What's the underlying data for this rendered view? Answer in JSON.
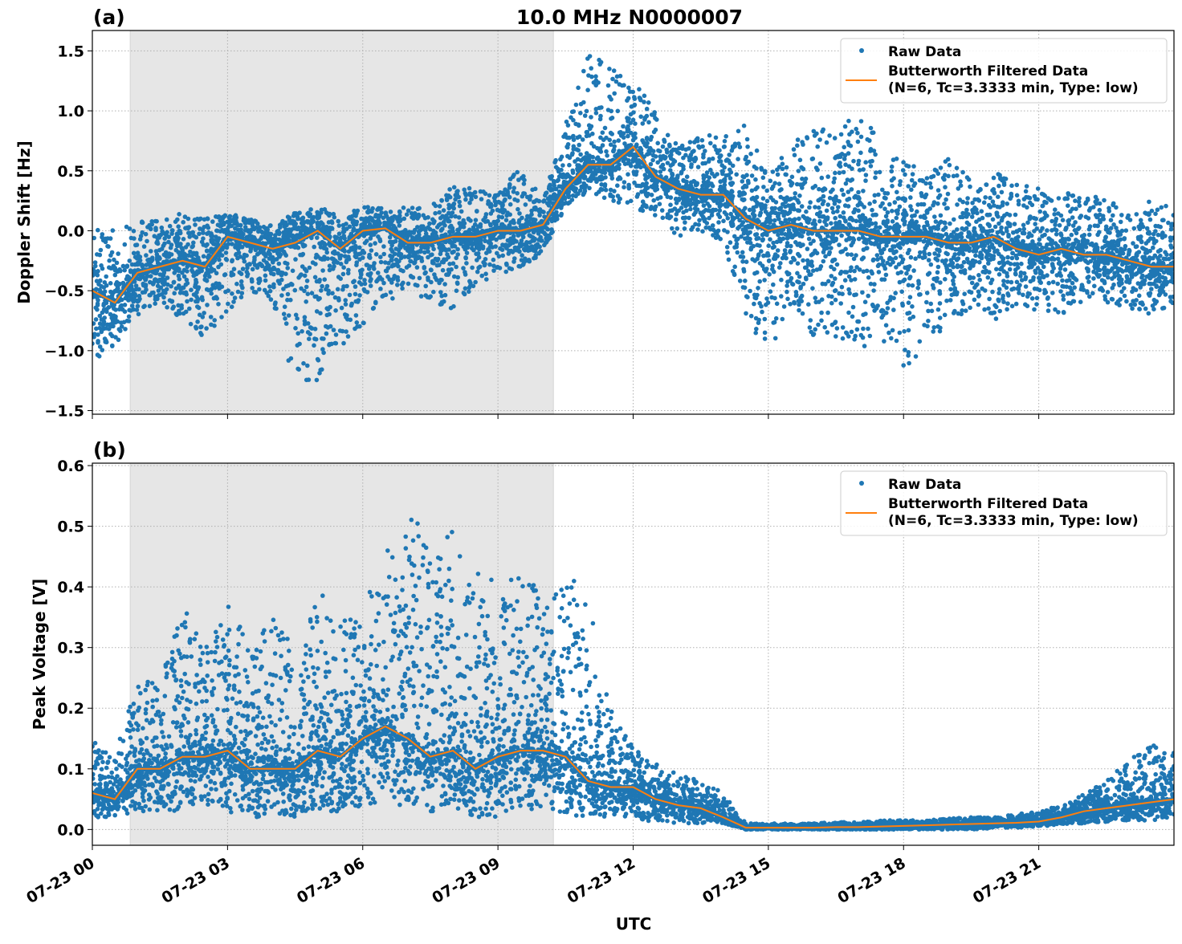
{
  "chart_data": [
    {
      "type": "scatter",
      "panel_label": "(a)",
      "title": "10.0 MHz N0000007",
      "xlabel": "",
      "ylabel": "Doppler Shift [Hz]",
      "xlim_hours": [
        0,
        24
      ],
      "ylim": [
        -1.53,
        1.67
      ],
      "yticks": [
        -1.5,
        -1.0,
        -0.5,
        0.0,
        0.5,
        1.0,
        1.5
      ],
      "ytick_labels": [
        "−1.5",
        "−1.0",
        "−0.5",
        "0.0",
        "0.5",
        "1.0",
        "1.5"
      ],
      "grid": true,
      "legend_placement": "top-right",
      "shaded_interval_hours": [
        0.84,
        10.23
      ],
      "x_hours": [
        0,
        0.5,
        1,
        1.5,
        2,
        2.5,
        3,
        3.5,
        4,
        4.5,
        5,
        5.5,
        6,
        6.5,
        7,
        7.5,
        8,
        8.5,
        9,
        9.5,
        10,
        10.5,
        11,
        11.5,
        12,
        12.5,
        13,
        13.5,
        14,
        14.5,
        15,
        15.5,
        16,
        16.5,
        17,
        17.5,
        18,
        18.5,
        19,
        19.5,
        20,
        20.5,
        21,
        21.5,
        22,
        22.5,
        23,
        23.5,
        24
      ],
      "series": [
        {
          "name": "Raw Data",
          "kind": "scatter",
          "color": "#1f77b4",
          "min": [
            -1.1,
            -0.95,
            -0.7,
            -0.6,
            -0.75,
            -0.9,
            -0.7,
            -0.5,
            -0.6,
            -1.35,
            -1.35,
            -1.05,
            -0.8,
            -0.6,
            -0.5,
            -0.6,
            -0.65,
            -0.5,
            -0.4,
            -0.3,
            -0.2,
            0.2,
            0.3,
            0.25,
            0.2,
            0.1,
            -0.05,
            0.0,
            -0.1,
            -0.7,
            -1.05,
            -0.6,
            -1.05,
            -0.9,
            -1.0,
            -0.9,
            -1.2,
            -0.95,
            -0.8,
            -0.7,
            -0.75,
            -0.65,
            -0.7,
            -0.7,
            -0.6,
            -0.6,
            -0.65,
            -0.7,
            -0.6
          ],
          "max": [
            0.0,
            0.05,
            0.1,
            0.1,
            0.15,
            0.1,
            0.15,
            0.1,
            0.05,
            0.15,
            0.2,
            0.15,
            0.2,
            0.2,
            0.2,
            0.2,
            0.4,
            0.35,
            0.3,
            0.55,
            0.3,
            0.9,
            1.5,
            1.35,
            1.25,
            1.0,
            0.7,
            0.8,
            0.8,
            0.9,
            0.5,
            0.75,
            0.9,
            0.8,
            1.05,
            0.7,
            0.6,
            0.5,
            0.6,
            0.45,
            0.5,
            0.4,
            0.35,
            0.3,
            0.35,
            0.25,
            0.2,
            0.25,
            0.2
          ]
        },
        {
          "name": "Butterworth Filtered Data\n(N=6, Tc=3.3333 min, Type: low)",
          "kind": "line",
          "color": "#ff7f0e",
          "values": [
            -0.5,
            -0.6,
            -0.35,
            -0.3,
            -0.25,
            -0.3,
            -0.05,
            -0.1,
            -0.15,
            -0.1,
            0.0,
            -0.15,
            0.0,
            0.02,
            -0.1,
            -0.1,
            -0.05,
            -0.05,
            0.0,
            0.0,
            0.05,
            0.35,
            0.55,
            0.55,
            0.7,
            0.45,
            0.35,
            0.3,
            0.3,
            0.1,
            0.0,
            0.05,
            0.0,
            0.0,
            0.0,
            -0.05,
            -0.05,
            -0.05,
            -0.1,
            -0.1,
            -0.05,
            -0.15,
            -0.2,
            -0.15,
            -0.2,
            -0.2,
            -0.25,
            -0.3,
            -0.3
          ]
        }
      ]
    },
    {
      "type": "scatter",
      "panel_label": "(b)",
      "xlabel": "UTC",
      "ylabel": "Peak Voltage [V]",
      "xlim_hours": [
        0,
        24
      ],
      "ylim": [
        -0.026,
        0.604
      ],
      "yticks": [
        0.0,
        0.1,
        0.2,
        0.3,
        0.4,
        0.5,
        0.6
      ],
      "ytick_labels": [
        "0.0",
        "0.1",
        "0.2",
        "0.3",
        "0.4",
        "0.5",
        "0.6"
      ],
      "xticks_hours": [
        0,
        3,
        6,
        9,
        12,
        15,
        18,
        21
      ],
      "xtick_labels": [
        "07-23 00",
        "07-23 03",
        "07-23 06",
        "07-23 09",
        "07-23 12",
        "07-23 15",
        "07-23 18",
        "07-23 21"
      ],
      "grid": true,
      "legend_placement": "top-right",
      "shaded_interval_hours": [
        0.84,
        10.23
      ],
      "x_hours": [
        0,
        0.5,
        1,
        1.5,
        2,
        2.5,
        3,
        3.5,
        4,
        4.5,
        5,
        5.5,
        6,
        6.5,
        7,
        7.5,
        8,
        8.5,
        9,
        9.5,
        10,
        10.5,
        11,
        11.5,
        12,
        12.5,
        13,
        13.5,
        14,
        14.5,
        15,
        15.5,
        16,
        16.5,
        17,
        17.5,
        18,
        18.5,
        19,
        19.5,
        20,
        20.5,
        21,
        21.5,
        22,
        22.5,
        23,
        23.5,
        24
      ],
      "series": [
        {
          "name": "Raw Data",
          "kind": "scatter",
          "color": "#1f77b4",
          "min": [
            0.02,
            0.02,
            0.03,
            0.03,
            0.03,
            0.04,
            0.03,
            0.02,
            0.02,
            0.02,
            0.03,
            0.03,
            0.04,
            0.04,
            0.04,
            0.03,
            0.03,
            0.02,
            0.02,
            0.03,
            0.03,
            0.02,
            0.02,
            0.02,
            0.02,
            0.01,
            0.01,
            0.01,
            0.01,
            0.0,
            0.0,
            0.0,
            0.0,
            0.0,
            0.0,
            0.0,
            0.0,
            0.0,
            0.0,
            0.0,
            0.002,
            0.003,
            0.005,
            0.008,
            0.01,
            0.012,
            0.015,
            0.015,
            0.02
          ],
          "max": [
            0.15,
            0.12,
            0.25,
            0.24,
            0.37,
            0.3,
            0.4,
            0.3,
            0.35,
            0.3,
            0.4,
            0.36,
            0.35,
            0.49,
            0.57,
            0.45,
            0.54,
            0.44,
            0.4,
            0.42,
            0.4,
            0.43,
            0.38,
            0.2,
            0.14,
            0.11,
            0.09,
            0.08,
            0.06,
            0.01,
            0.01,
            0.01,
            0.01,
            0.012,
            0.012,
            0.015,
            0.015,
            0.015,
            0.018,
            0.02,
            0.02,
            0.025,
            0.03,
            0.04,
            0.06,
            0.08,
            0.12,
            0.14,
            0.13
          ]
        },
        {
          "name": "Butterworth Filtered Data\n(N=6, Tc=3.3333 min, Type: low)",
          "kind": "line",
          "color": "#ff7f0e",
          "values": [
            0.06,
            0.05,
            0.1,
            0.1,
            0.12,
            0.12,
            0.13,
            0.1,
            0.1,
            0.1,
            0.13,
            0.12,
            0.15,
            0.17,
            0.15,
            0.12,
            0.13,
            0.1,
            0.12,
            0.13,
            0.13,
            0.12,
            0.08,
            0.07,
            0.07,
            0.05,
            0.04,
            0.035,
            0.02,
            0.003,
            0.003,
            0.003,
            0.003,
            0.004,
            0.004,
            0.005,
            0.006,
            0.007,
            0.008,
            0.009,
            0.01,
            0.011,
            0.013,
            0.02,
            0.03,
            0.035,
            0.04,
            0.045,
            0.05
          ]
        }
      ]
    }
  ],
  "legend": {
    "raw": "Raw Data",
    "filtered_line1": "Butterworth Filtered Data",
    "filtered_line2": "(N=6, Tc=3.3333 min, Type: low)"
  }
}
